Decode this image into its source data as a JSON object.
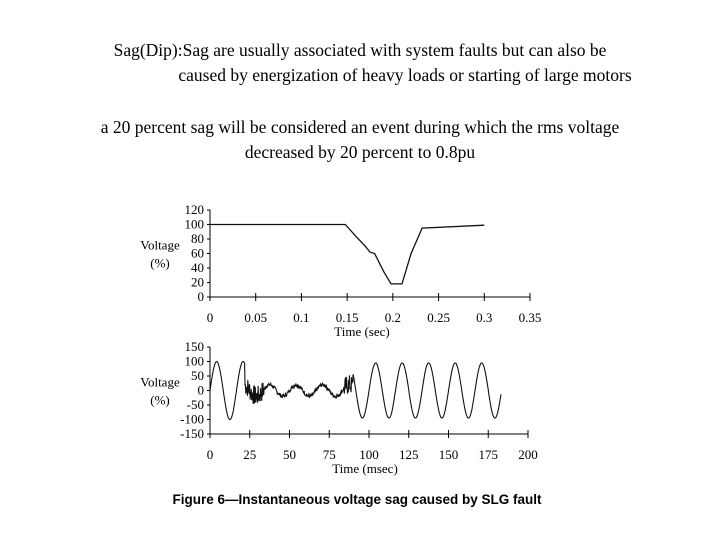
{
  "slide": {
    "heading_line1": "Sag(Dip):Sag are usually associated with system faults but can also be",
    "heading_line2": "caused by energization of heavy loads or starting of large motors",
    "body_line1": "a 20 percent sag will be considered an event during which the rms voltage",
    "body_line2": "decreased by 20 percent to 0.8pu"
  },
  "figure": {
    "caption": "Figure 6—Instantaneous voltage sag caused by SLG fault"
  },
  "chart_data": [
    {
      "type": "line",
      "ylabel": "Voltage (%)",
      "xlabel": "Time (sec)",
      "xlim": [
        0,
        0.35
      ],
      "ylim": [
        0,
        120
      ],
      "xticks": [
        "0",
        "0.05",
        "0.1",
        "0.15",
        "0.2",
        "0.25",
        "0.3",
        "0.35"
      ],
      "yticks": [
        "120",
        "100",
        "80",
        "60",
        "40",
        "20",
        "0"
      ],
      "grid": false,
      "color": "#111111",
      "series": [
        {
          "x": [
            0,
            0.148,
            0.16,
            0.17,
            0.175,
            0.18,
            0.19,
            0.198,
            0.21,
            0.22,
            0.232,
            0.3
          ],
          "y": [
            100,
            100,
            83,
            70,
            62,
            60,
            35,
            18,
            18,
            60,
            95,
            99
          ]
        }
      ]
    },
    {
      "type": "line",
      "ylabel": "Voltage (%)",
      "xlabel": "Time (msec)",
      "xlim": [
        0,
        200
      ],
      "ylim": [
        -150,
        150
      ],
      "xticks": [
        "0",
        "25",
        "50",
        "75",
        "100",
        "125",
        "150",
        "175",
        "200"
      ],
      "yticks": [
        "150",
        "100",
        "50",
        "0",
        "-50",
        "-100",
        "-150"
      ],
      "grid": false,
      "color": "#111111",
      "waveform": {
        "period_ms": 16.67,
        "pre_fault_amplitude": 100,
        "fault_start_ms": 22,
        "fault_end_ms": 90,
        "fault_amplitude": 20,
        "post_fault_amplitude": 95,
        "end_ms": 183
      }
    }
  ]
}
